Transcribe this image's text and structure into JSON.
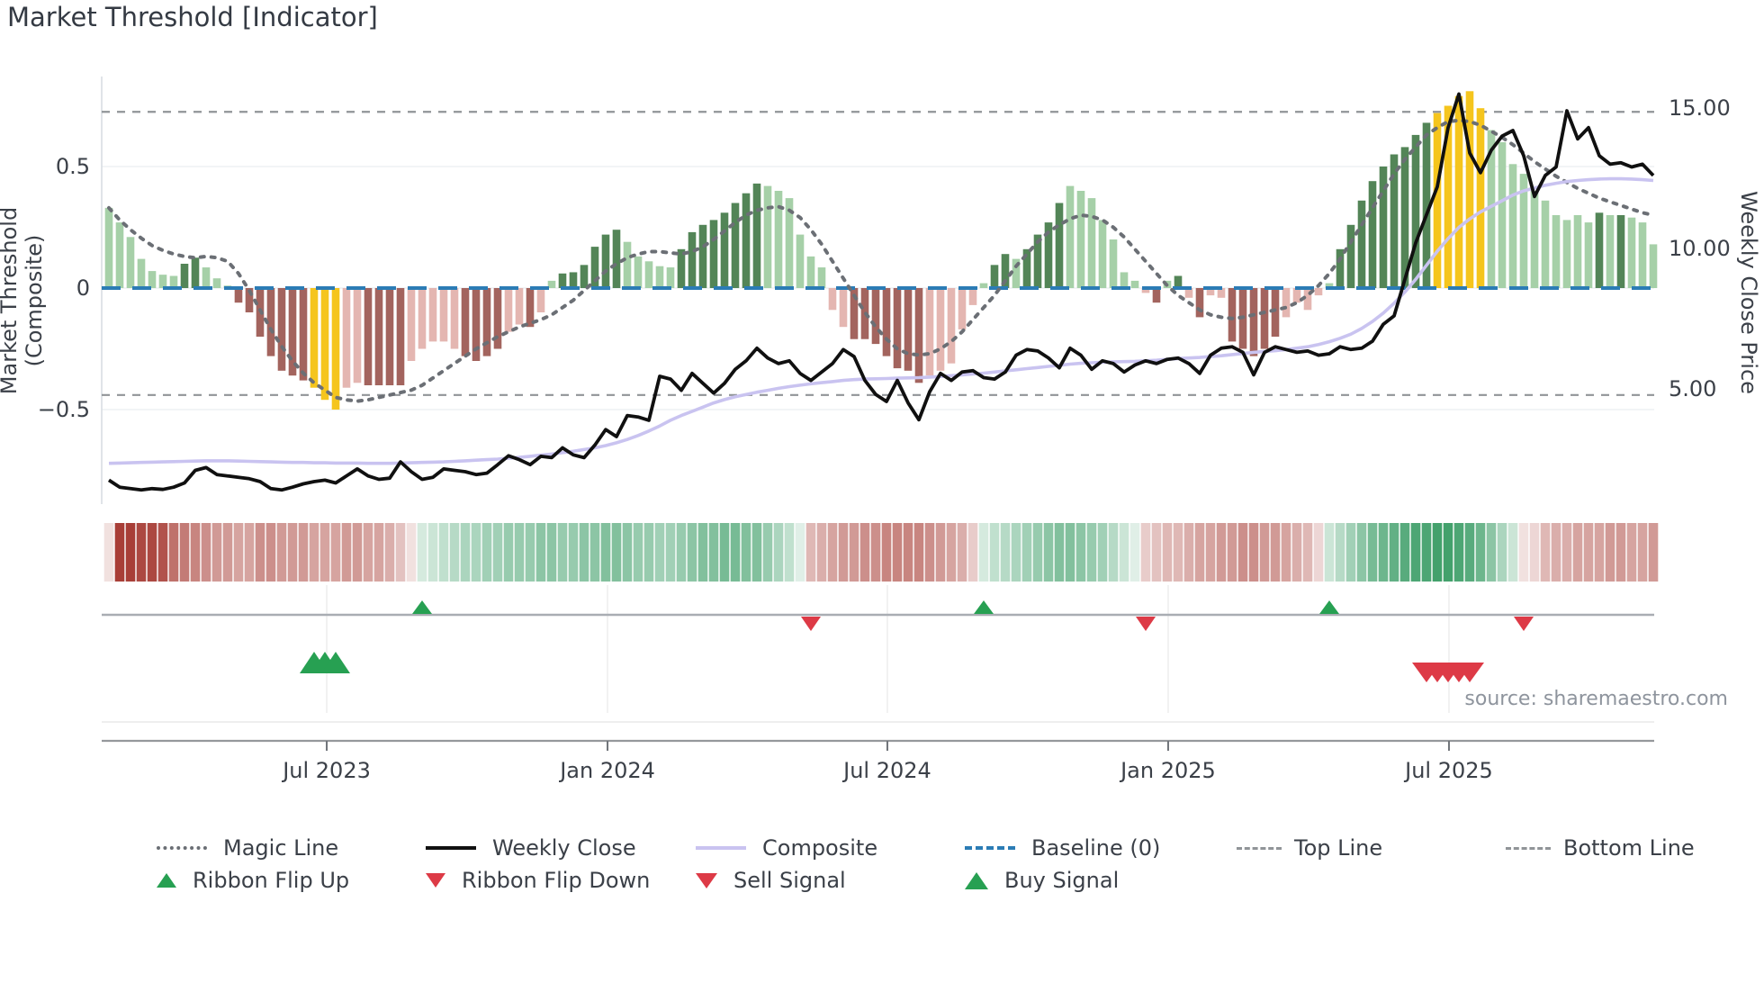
{
  "title": "Market Threshold [Indicator]",
  "source": "source: sharemaestro.com",
  "legend": {
    "items": [
      {
        "label": "Magic Line",
        "symbol": "dotted-gray"
      },
      {
        "label": "Weekly Close",
        "symbol": "solid-black"
      },
      {
        "label": "Composite",
        "symbol": "solid-purple"
      },
      {
        "label": "Baseline (0)",
        "symbol": "dashed-blue"
      },
      {
        "label": "Top Line",
        "symbol": "dashed-gray"
      },
      {
        "label": "Bottom Line",
        "symbol": "dashed-gray"
      },
      {
        "label": "Ribbon Flip Up",
        "symbol": "triangle-up-green"
      },
      {
        "label": "Ribbon Flip Down",
        "symbol": "triangle-down-red"
      },
      {
        "label": "Sell Signal",
        "symbol": "triangle-down-red"
      },
      {
        "label": "Buy Signal",
        "symbol": "triangle-up-green"
      }
    ]
  },
  "colors": {
    "bar_light_green": "#a6d0a8",
    "bar_dark_green": "#538557",
    "bar_light_red": "#e4b6b1",
    "bar_dark_red": "#a3645e",
    "bar_yellow": "#f5c51d",
    "baseline_blue": "#2b7cb5",
    "magic_gray": "#6b6f75",
    "composite_purple": "#c9c3f0",
    "close_black": "#101010",
    "threshold_dash": "#909498",
    "grid": "#edf0f4",
    "spine": "#d8dde3",
    "signal_green": "#27a052",
    "signal_red": "#dd3a46",
    "ribbon_green_base": "#2e965c",
    "ribbon_red_base": "#a3342c",
    "text": "#3b4048"
  },
  "chart_data": {
    "type": "bar",
    "title": "Market Threshold [Indicator]",
    "left_axis": {
      "label": "Market Threshold (Composite)",
      "ticks": [
        {
          "v": 0.5,
          "label": "0.5"
        },
        {
          "v": 0,
          "label": "0"
        },
        {
          "v": -0.5,
          "label": "−0.5"
        }
      ],
      "range": [
        -0.87,
        0.87
      ]
    },
    "right_axis": {
      "label": "Weekly Close Price",
      "ticks": [
        {
          "p": 15,
          "label": "15.00"
        },
        {
          "p": 10,
          "label": "10.00"
        },
        {
          "p": 5,
          "label": "5.00"
        }
      ],
      "range": [
        0.6,
        16.2
      ]
    },
    "x_axis": {
      "ticks": [
        {
          "label": "Jul 2023",
          "week": 20.17
        },
        {
          "label": "Jan 2024",
          "week": 46.17
        },
        {
          "label": "Jul 2024",
          "week": 72.08
        },
        {
          "label": "Jan 2025",
          "week": 98.08
        },
        {
          "label": "Jul 2025",
          "week": 124.08
        }
      ]
    },
    "baseline": 0,
    "top_line": 0.725,
    "bottom_line": -0.44,
    "bars": {
      "values": [
        0.33,
        0.27,
        0.21,
        0.12,
        0.07,
        0.055,
        0.05,
        0.1,
        0.125,
        0.085,
        0.04,
        0.01,
        -0.06,
        -0.1,
        -0.2,
        -0.28,
        -0.34,
        -0.36,
        -0.38,
        -0.41,
        -0.46,
        -0.5,
        -0.41,
        -0.39,
        -0.4,
        -0.4,
        -0.4,
        -0.4,
        -0.3,
        -0.25,
        -0.22,
        -0.22,
        -0.25,
        -0.28,
        -0.3,
        -0.28,
        -0.25,
        -0.18,
        -0.15,
        -0.16,
        -0.1,
        0.03,
        0.06,
        0.065,
        0.095,
        0.17,
        0.22,
        0.24,
        0.19,
        0.13,
        0.11,
        0.09,
        0.085,
        0.16,
        0.23,
        0.26,
        0.28,
        0.31,
        0.35,
        0.39,
        0.43,
        0.42,
        0.4,
        0.37,
        0.22,
        0.13,
        0.085,
        -0.09,
        -0.16,
        -0.21,
        -0.21,
        -0.23,
        -0.28,
        -0.33,
        -0.34,
        -0.39,
        -0.36,
        -0.34,
        -0.31,
        -0.17,
        -0.07,
        0.02,
        0.095,
        0.14,
        0.12,
        0.16,
        0.22,
        0.27,
        0.35,
        0.42,
        0.4,
        0.37,
        0.28,
        0.2,
        0.065,
        0.03,
        -0.02,
        -0.06,
        0.03,
        0.05,
        -0.04,
        -0.12,
        -0.03,
        -0.04,
        -0.22,
        -0.25,
        -0.28,
        -0.25,
        -0.2,
        -0.12,
        -0.06,
        -0.09,
        -0.03,
        0.02,
        0.16,
        0.26,
        0.36,
        0.44,
        0.5,
        0.55,
        0.58,
        0.63,
        0.68,
        0.72,
        0.75,
        0.79,
        0.81,
        0.74,
        0.65,
        0.6,
        0.51,
        0.47,
        0.4,
        0.36,
        0.3,
        0.28,
        0.3,
        0.27,
        0.31,
        0.3,
        0.3,
        0.29,
        0.27,
        0.18
      ],
      "colors": [
        "lg",
        "lg",
        "lg",
        "lg",
        "lg",
        "lg",
        "lg",
        "dg",
        "dg",
        "lg",
        "lg",
        "lg",
        "dr",
        "dr",
        "dr",
        "dr",
        "dr",
        "dr",
        "dr",
        "y",
        "y",
        "y",
        "lr",
        "lr",
        "dr",
        "dr",
        "dr",
        "dr",
        "lr",
        "lr",
        "lr",
        "lr",
        "lr",
        "dr",
        "dr",
        "dr",
        "dr",
        "lr",
        "lr",
        "dr",
        "lr",
        "lg",
        "dg",
        "dg",
        "dg",
        "dg",
        "dg",
        "dg",
        "lg",
        "lg",
        "lg",
        "lg",
        "lg",
        "dg",
        "dg",
        "dg",
        "dg",
        "dg",
        "dg",
        "dg",
        "dg",
        "lg",
        "lg",
        "lg",
        "lg",
        "lg",
        "lg",
        "lr",
        "lr",
        "dr",
        "dr",
        "dr",
        "dr",
        "dr",
        "dr",
        "dr",
        "lr",
        "lr",
        "lr",
        "lr",
        "lr",
        "lg",
        "dg",
        "dg",
        "lg",
        "dg",
        "dg",
        "dg",
        "dg",
        "lg",
        "lg",
        "lg",
        "lg",
        "lg",
        "lg",
        "lg",
        "lr",
        "dr",
        "lg",
        "dg",
        "lr",
        "dr",
        "lr",
        "lr",
        "dr",
        "dr",
        "dr",
        "dr",
        "dr",
        "lr",
        "lr",
        "lr",
        "lr",
        "lg",
        "dg",
        "dg",
        "dg",
        "dg",
        "dg",
        "dg",
        "dg",
        "dg",
        "dg",
        "y",
        "y",
        "y",
        "y",
        "y",
        "lg",
        "lg",
        "lg",
        "lg",
        "lg",
        "lg",
        "lg",
        "lg",
        "lg",
        "lg",
        "dg",
        "lg",
        "dg",
        "lg",
        "lg",
        "lg"
      ]
    },
    "ribbon": [
      -0.15,
      -0.95,
      -0.95,
      -0.9,
      -0.9,
      -0.85,
      -0.7,
      -0.65,
      -0.6,
      -0.55,
      -0.5,
      -0.5,
      -0.45,
      -0.45,
      -0.55,
      -0.55,
      -0.5,
      -0.5,
      -0.5,
      -0.45,
      -0.45,
      -0.45,
      -0.5,
      -0.5,
      -0.45,
      -0.45,
      -0.4,
      -0.3,
      -0.15,
      0.2,
      0.25,
      0.3,
      0.35,
      0.4,
      0.4,
      0.45,
      0.45,
      0.5,
      0.5,
      0.5,
      0.55,
      0.55,
      0.5,
      0.5,
      0.55,
      0.55,
      0.6,
      0.6,
      0.55,
      0.5,
      0.5,
      0.45,
      0.45,
      0.5,
      0.55,
      0.6,
      0.6,
      0.65,
      0.65,
      0.6,
      0.6,
      0.5,
      0.4,
      0.3,
      0.15,
      -0.35,
      -0.4,
      -0.45,
      -0.5,
      -0.5,
      -0.55,
      -0.55,
      -0.6,
      -0.6,
      -0.6,
      -0.6,
      -0.55,
      -0.5,
      -0.45,
      -0.4,
      -0.25,
      0.2,
      0.3,
      0.35,
      0.4,
      0.45,
      0.5,
      0.55,
      0.6,
      0.6,
      0.55,
      0.5,
      0.45,
      0.35,
      0.25,
      0.15,
      -0.25,
      -0.3,
      -0.35,
      -0.35,
      -0.4,
      -0.45,
      -0.45,
      -0.5,
      -0.5,
      -0.55,
      -0.55,
      -0.5,
      -0.5,
      -0.45,
      -0.4,
      -0.35,
      -0.2,
      0.25,
      0.35,
      0.45,
      0.55,
      0.65,
      0.7,
      0.75,
      0.8,
      0.85,
      0.85,
      0.9,
      0.9,
      0.85,
      0.8,
      0.7,
      0.55,
      0.4,
      0.25,
      -0.15,
      -0.2,
      -0.35,
      -0.4,
      -0.4,
      -0.45,
      -0.45,
      -0.45,
      -0.5,
      -0.5,
      -0.45,
      -0.45,
      -0.5
    ],
    "series": [
      {
        "name": "Weekly Close",
        "axis": "right",
        "values": [
          1.75,
          1.5,
          1.45,
          1.4,
          1.45,
          1.42,
          1.5,
          1.65,
          2.1,
          2.2,
          1.95,
          1.9,
          1.85,
          1.8,
          1.7,
          1.45,
          1.4,
          1.5,
          1.62,
          1.7,
          1.75,
          1.65,
          1.9,
          2.15,
          1.9,
          1.78,
          1.82,
          2.4,
          2.05,
          1.78,
          1.85,
          2.15,
          2.1,
          2.05,
          1.95,
          2.0,
          2.3,
          2.62,
          2.48,
          2.3,
          2.6,
          2.55,
          2.9,
          2.65,
          2.55,
          3.0,
          3.55,
          3.3,
          4.05,
          4.0,
          3.88,
          5.45,
          5.35,
          4.95,
          5.55,
          5.2,
          4.85,
          5.2,
          5.7,
          6.0,
          6.45,
          6.1,
          5.9,
          6.0,
          5.55,
          5.3,
          5.6,
          5.9,
          6.4,
          6.15,
          5.3,
          4.8,
          4.55,
          5.3,
          4.5,
          3.9,
          4.9,
          5.55,
          5.3,
          5.6,
          5.65,
          5.4,
          5.35,
          5.6,
          6.2,
          6.4,
          6.35,
          6.1,
          5.75,
          6.45,
          6.2,
          5.7,
          6.0,
          5.9,
          5.6,
          5.85,
          6.0,
          5.9,
          6.05,
          6.1,
          5.9,
          5.55,
          6.2,
          6.45,
          6.5,
          6.3,
          5.5,
          6.3,
          6.5,
          6.4,
          6.3,
          6.35,
          6.2,
          6.25,
          6.5,
          6.4,
          6.45,
          6.7,
          7.3,
          7.6,
          8.9,
          10.2,
          11.2,
          12.2,
          14.3,
          15.5,
          13.4,
          12.7,
          13.5,
          14.0,
          14.2,
          13.3,
          11.85,
          12.6,
          12.9,
          14.9,
          13.9,
          14.3,
          13.3,
          13.0,
          13.05,
          12.9,
          13.0,
          12.6
        ]
      },
      {
        "name": "Composite",
        "axis": "right",
        "values": [
          2.35,
          2.36,
          2.37,
          2.38,
          2.39,
          2.4,
          2.41,
          2.42,
          2.43,
          2.44,
          2.44,
          2.44,
          2.43,
          2.42,
          2.41,
          2.4,
          2.39,
          2.38,
          2.38,
          2.37,
          2.37,
          2.36,
          2.36,
          2.36,
          2.35,
          2.35,
          2.35,
          2.36,
          2.37,
          2.38,
          2.39,
          2.4,
          2.42,
          2.44,
          2.46,
          2.48,
          2.5,
          2.53,
          2.56,
          2.6,
          2.64,
          2.68,
          2.73,
          2.78,
          2.84,
          2.9,
          2.98,
          3.08,
          3.2,
          3.34,
          3.5,
          3.68,
          3.88,
          4.05,
          4.2,
          4.35,
          4.5,
          4.62,
          4.72,
          4.8,
          4.88,
          4.95,
          5.02,
          5.08,
          5.13,
          5.18,
          5.22,
          5.26,
          5.3,
          5.33,
          5.35,
          5.36,
          5.37,
          5.38,
          5.39,
          5.4,
          5.42,
          5.44,
          5.47,
          5.5,
          5.53,
          5.56,
          5.6,
          5.64,
          5.68,
          5.72,
          5.76,
          5.8,
          5.84,
          5.88,
          5.91,
          5.93,
          5.95,
          5.96,
          5.97,
          5.98,
          6.0,
          6.02,
          6.05,
          6.08,
          6.1,
          6.12,
          6.15,
          6.18,
          6.22,
          6.26,
          6.3,
          6.33,
          6.36,
          6.4,
          6.45,
          6.5,
          6.58,
          6.68,
          6.8,
          6.95,
          7.15,
          7.4,
          7.7,
          8.05,
          8.45,
          8.9,
          9.4,
          9.9,
          10.35,
          10.75,
          11.05,
          11.3,
          11.5,
          11.7,
          11.9,
          12.05,
          12.15,
          12.25,
          12.32,
          12.38,
          12.42,
          12.45,
          12.47,
          12.48,
          12.48,
          12.47,
          12.45,
          12.42
        ]
      },
      {
        "name": "Magic Line",
        "axis": "left",
        "values": [
          0.33,
          0.28,
          0.24,
          0.205,
          0.175,
          0.155,
          0.14,
          0.13,
          0.125,
          0.13,
          0.125,
          0.11,
          0.06,
          -0.01,
          -0.09,
          -0.17,
          -0.24,
          -0.3,
          -0.35,
          -0.39,
          -0.42,
          -0.45,
          -0.46,
          -0.465,
          -0.46,
          -0.45,
          -0.44,
          -0.43,
          -0.42,
          -0.4,
          -0.37,
          -0.34,
          -0.31,
          -0.28,
          -0.25,
          -0.225,
          -0.2,
          -0.18,
          -0.16,
          -0.145,
          -0.13,
          -0.11,
          -0.08,
          -0.05,
          -0.01,
          0.03,
          0.07,
          0.1,
          0.125,
          0.14,
          0.15,
          0.15,
          0.145,
          0.14,
          0.15,
          0.17,
          0.2,
          0.235,
          0.27,
          0.3,
          0.32,
          0.33,
          0.335,
          0.32,
          0.29,
          0.24,
          0.18,
          0.11,
          0.04,
          -0.03,
          -0.1,
          -0.16,
          -0.21,
          -0.25,
          -0.27,
          -0.275,
          -0.27,
          -0.25,
          -0.22,
          -0.18,
          -0.13,
          -0.08,
          -0.03,
          0.03,
          0.09,
          0.14,
          0.19,
          0.23,
          0.26,
          0.285,
          0.3,
          0.295,
          0.28,
          0.25,
          0.21,
          0.16,
          0.11,
          0.06,
          0.01,
          -0.03,
          -0.06,
          -0.09,
          -0.11,
          -0.12,
          -0.125,
          -0.12,
          -0.11,
          -0.1,
          -0.09,
          -0.08,
          -0.06,
          -0.03,
          0.01,
          0.06,
          0.12,
          0.19,
          0.26,
          0.33,
          0.4,
          0.47,
          0.53,
          0.58,
          0.63,
          0.66,
          0.685,
          0.69,
          0.685,
          0.67,
          0.645,
          0.62,
          0.59,
          0.555,
          0.52,
          0.49,
          0.46,
          0.435,
          0.41,
          0.39,
          0.37,
          0.355,
          0.34,
          0.325,
          0.31,
          0.3
        ]
      }
    ],
    "signals": {
      "ribbon_flip_up_weeks": [
        29,
        81,
        113
      ],
      "ribbon_flip_down_weeks": [
        65,
        96,
        131
      ],
      "buy_signal_weeks": [
        19,
        20,
        21
      ],
      "sell_signal_weeks": [
        122,
        123,
        124,
        125,
        126
      ]
    }
  }
}
